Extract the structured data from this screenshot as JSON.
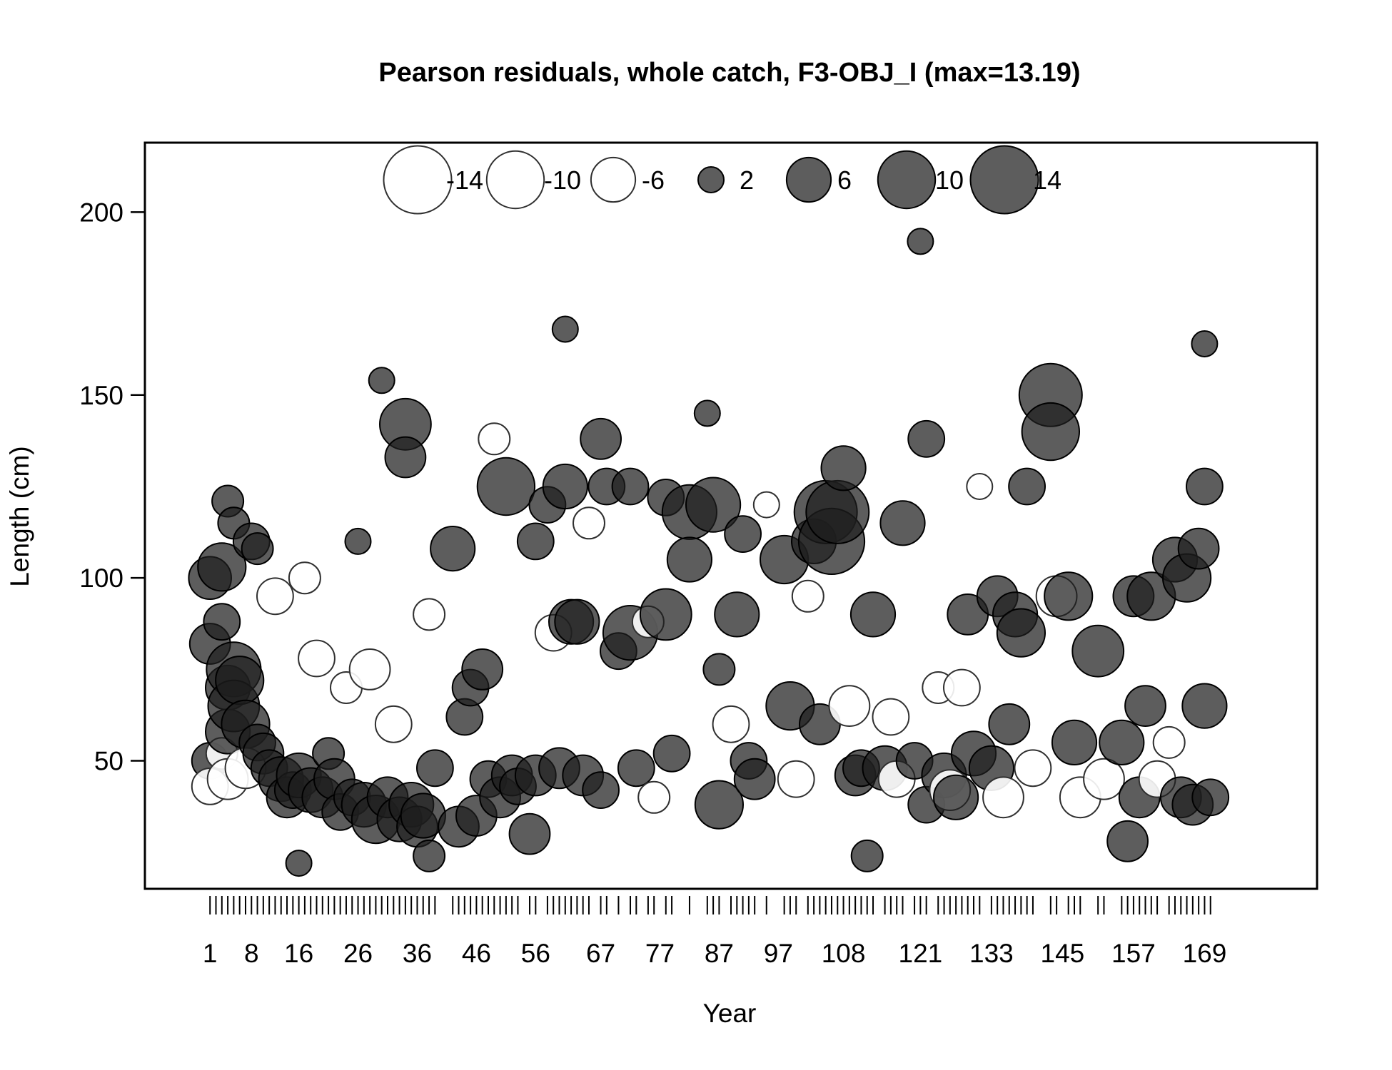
{
  "chart_data": {
    "type": "scatter",
    "subtype": "bubble",
    "title": "Pearson residuals, whole catch, F3-OBJ_I (max=13.19)",
    "xlabel": "Year",
    "ylabel": "Length (cm)",
    "ylim": [
      15,
      219
    ],
    "xlim": [
      -10,
      188
    ],
    "y_ticks": [
      50,
      100,
      150,
      200
    ],
    "x_tick_labels": [
      1,
      8,
      16,
      26,
      36,
      46,
      56,
      67,
      77,
      87,
      97,
      108,
      121,
      133,
      145,
      157,
      169
    ],
    "observed_x": [
      1,
      2,
      3,
      4,
      5,
      6,
      7,
      8,
      9,
      10,
      11,
      12,
      13,
      14,
      15,
      16,
      17,
      18,
      19,
      20,
      21,
      22,
      23,
      24,
      25,
      26,
      27,
      28,
      29,
      30,
      31,
      32,
      33,
      34,
      35,
      36,
      37,
      38,
      39,
      42,
      43,
      44,
      45,
      46,
      47,
      48,
      49,
      50,
      51,
      52,
      53,
      55,
      56,
      58,
      59,
      60,
      61,
      62,
      63,
      64,
      65,
      67,
      68,
      70,
      72,
      73,
      75,
      76,
      78,
      79,
      82,
      85,
      86,
      87,
      89,
      90,
      91,
      92,
      93,
      95,
      98,
      99,
      100,
      102,
      103,
      104,
      105,
      106,
      107,
      108,
      109,
      110,
      111,
      112,
      113,
      115,
      116,
      117,
      118,
      120,
      121,
      122,
      124,
      125,
      126,
      127,
      128,
      129,
      130,
      131,
      133,
      134,
      135,
      136,
      137,
      138,
      139,
      140,
      143,
      144,
      146,
      147,
      148,
      151,
      152,
      155,
      156,
      157,
      158,
      159,
      160,
      161,
      163,
      164,
      165,
      166,
      167,
      168,
      169,
      170
    ],
    "legend": {
      "position": "top",
      "entries": [
        {
          "label": "-14",
          "value": -14
        },
        {
          "label": "-10",
          "value": -10
        },
        {
          "label": "-6",
          "value": -6
        },
        {
          "label": "2",
          "value": 2
        },
        {
          "label": "6",
          "value": 6
        },
        {
          "label": "10",
          "value": 10
        },
        {
          "label": "14",
          "value": 14
        }
      ]
    },
    "encoding": "bubble area proportional to |residual|; filled dark = positive, open white = negative",
    "colors": {
      "positive_fill": "#1f1f1f",
      "positive_stroke": "#000000",
      "negative_fill": "#ffffff",
      "negative_stroke": "#303030"
    },
    "points": [
      {
        "x": 1,
        "y": 100,
        "r": 5.5
      },
      {
        "x": 1,
        "y": 82,
        "r": 5
      },
      {
        "x": 1,
        "y": 50,
        "r": 4
      },
      {
        "x": 1,
        "y": 43,
        "r": -4
      },
      {
        "x": 3,
        "y": 103,
        "r": 7
      },
      {
        "x": 3,
        "y": 88,
        "r": 4
      },
      {
        "x": 3,
        "y": 52,
        "r": -3
      },
      {
        "x": 4,
        "y": 121,
        "r": 3
      },
      {
        "x": 4,
        "y": 70,
        "r": 6
      },
      {
        "x": 4,
        "y": 58,
        "r": 6
      },
      {
        "x": 4,
        "y": 45,
        "r": -5
      },
      {
        "x": 5,
        "y": 115,
        "r": 3
      },
      {
        "x": 5,
        "y": 75,
        "r": 9
      },
      {
        "x": 5,
        "y": 65,
        "r": 8
      },
      {
        "x": 6,
        "y": 72,
        "r": 7
      },
      {
        "x": 7,
        "y": 60,
        "r": 7
      },
      {
        "x": 7,
        "y": 48,
        "r": -5
      },
      {
        "x": 8,
        "y": 110,
        "r": 4
      },
      {
        "x": 9,
        "y": 108,
        "r": 3
      },
      {
        "x": 9,
        "y": 55,
        "r": 4
      },
      {
        "x": 10,
        "y": 52,
        "r": 5
      },
      {
        "x": 11,
        "y": 48,
        "r": 4
      },
      {
        "x": 12,
        "y": 95,
        "r": -4
      },
      {
        "x": 13,
        "y": 45,
        "r": 6
      },
      {
        "x": 14,
        "y": 40,
        "r": 5
      },
      {
        "x": 15,
        "y": 42,
        "r": 4
      },
      {
        "x": 16,
        "y": 22,
        "r": 2
      },
      {
        "x": 16,
        "y": 46,
        "r": 6
      },
      {
        "x": 17,
        "y": 100,
        "r": -3
      },
      {
        "x": 18,
        "y": 42,
        "r": 6
      },
      {
        "x": 19,
        "y": 78,
        "r": -4
      },
      {
        "x": 20,
        "y": 40,
        "r": 5
      },
      {
        "x": 21,
        "y": 52,
        "r": 3
      },
      {
        "x": 22,
        "y": 45,
        "r": 5
      },
      {
        "x": 23,
        "y": 36,
        "r": 4
      },
      {
        "x": 24,
        "y": 70,
        "r": -3
      },
      {
        "x": 25,
        "y": 40,
        "r": 4
      },
      {
        "x": 26,
        "y": 110,
        "r": 2
      },
      {
        "x": 27,
        "y": 38,
        "r": 6
      },
      {
        "x": 28,
        "y": 75,
        "r": -5
      },
      {
        "x": 29,
        "y": 34,
        "r": 7
      },
      {
        "x": 30,
        "y": 154,
        "r": 2
      },
      {
        "x": 31,
        "y": 40,
        "r": 5
      },
      {
        "x": 32,
        "y": 60,
        "r": -4
      },
      {
        "x": 33,
        "y": 34,
        "r": 6
      },
      {
        "x": 34,
        "y": 142,
        "r": 8
      },
      {
        "x": 34,
        "y": 133,
        "r": 5
      },
      {
        "x": 35,
        "y": 38,
        "r": 6
      },
      {
        "x": 36,
        "y": 32,
        "r": 5
      },
      {
        "x": 37,
        "y": 35,
        "r": 6
      },
      {
        "x": 38,
        "y": 90,
        "r": -3
      },
      {
        "x": 38,
        "y": 24,
        "r": 3
      },
      {
        "x": 39,
        "y": 48,
        "r": 4
      },
      {
        "x": 42,
        "y": 108,
        "r": 6
      },
      {
        "x": 43,
        "y": 32,
        "r": 5
      },
      {
        "x": 44,
        "y": 62,
        "r": 4
      },
      {
        "x": 45,
        "y": 70,
        "r": 4
      },
      {
        "x": 46,
        "y": 35,
        "r": 5
      },
      {
        "x": 47,
        "y": 75,
        "r": 5
      },
      {
        "x": 48,
        "y": 45,
        "r": 4
      },
      {
        "x": 49,
        "y": 138,
        "r": -3
      },
      {
        "x": 50,
        "y": 40,
        "r": 5
      },
      {
        "x": 51,
        "y": 125,
        "r": 10
      },
      {
        "x": 52,
        "y": 46,
        "r": 5
      },
      {
        "x": 53,
        "y": 43,
        "r": 4
      },
      {
        "x": 55,
        "y": 30,
        "r": 5
      },
      {
        "x": 56,
        "y": 110,
        "r": 4
      },
      {
        "x": 56,
        "y": 46,
        "r": 5
      },
      {
        "x": 58,
        "y": 120,
        "r": 4
      },
      {
        "x": 59,
        "y": 85,
        "r": -4
      },
      {
        "x": 60,
        "y": 48,
        "r": 5
      },
      {
        "x": 61,
        "y": 168,
        "r": 2
      },
      {
        "x": 61,
        "y": 125,
        "r": 6
      },
      {
        "x": 62,
        "y": 88,
        "r": 6
      },
      {
        "x": 63,
        "y": 88,
        "r": 6
      },
      {
        "x": 64,
        "y": 46,
        "r": 5
      },
      {
        "x": 65,
        "y": 115,
        "r": -3
      },
      {
        "x": 67,
        "y": 138,
        "r": 5
      },
      {
        "x": 67,
        "y": 42,
        "r": 4
      },
      {
        "x": 68,
        "y": 125,
        "r": 4
      },
      {
        "x": 70,
        "y": 80,
        "r": 4
      },
      {
        "x": 72,
        "y": 85,
        "r": 9
      },
      {
        "x": 72,
        "y": 125,
        "r": 4
      },
      {
        "x": 73,
        "y": 48,
        "r": 4
      },
      {
        "x": 75,
        "y": 88,
        "r": -3
      },
      {
        "x": 76,
        "y": 40,
        "r": -3
      },
      {
        "x": 78,
        "y": 90,
        "r": 8
      },
      {
        "x": 78,
        "y": 122,
        "r": 4
      },
      {
        "x": 79,
        "y": 52,
        "r": 4
      },
      {
        "x": 82,
        "y": 118,
        "r": 9
      },
      {
        "x": 82,
        "y": 105,
        "r": 6
      },
      {
        "x": 85,
        "y": 145,
        "r": 2
      },
      {
        "x": 86,
        "y": 120,
        "r": 9
      },
      {
        "x": 87,
        "y": 75,
        "r": 3
      },
      {
        "x": 87,
        "y": 38,
        "r": 7
      },
      {
        "x": 89,
        "y": 60,
        "r": -4
      },
      {
        "x": 90,
        "y": 90,
        "r": 6
      },
      {
        "x": 91,
        "y": 112,
        "r": 4
      },
      {
        "x": 92,
        "y": 50,
        "r": 4
      },
      {
        "x": 93,
        "y": 45,
        "r": 5
      },
      {
        "x": 95,
        "y": 120,
        "r": -2
      },
      {
        "x": 98,
        "y": 105,
        "r": 7
      },
      {
        "x": 99,
        "y": 65,
        "r": 7
      },
      {
        "x": 100,
        "y": 45,
        "r": -4
      },
      {
        "x": 102,
        "y": 95,
        "r": -3
      },
      {
        "x": 103,
        "y": 110,
        "r": 6
      },
      {
        "x": 104,
        "y": 60,
        "r": 5
      },
      {
        "x": 105,
        "y": 118,
        "r": 12
      },
      {
        "x": 106,
        "y": 110,
        "r": 13.19
      },
      {
        "x": 107,
        "y": 118,
        "r": 12
      },
      {
        "x": 108,
        "y": 130,
        "r": 6
      },
      {
        "x": 109,
        "y": 65,
        "r": -5
      },
      {
        "x": 110,
        "y": 46,
        "r": 5
      },
      {
        "x": 111,
        "y": 48,
        "r": 4
      },
      {
        "x": 112,
        "y": 24,
        "r": 3
      },
      {
        "x": 113,
        "y": 90,
        "r": 6
      },
      {
        "x": 115,
        "y": 48,
        "r": 6
      },
      {
        "x": 116,
        "y": 62,
        "r": -4
      },
      {
        "x": 117,
        "y": 45,
        "r": -4
      },
      {
        "x": 118,
        "y": 115,
        "r": 6
      },
      {
        "x": 120,
        "y": 50,
        "r": 4
      },
      {
        "x": 121,
        "y": 192,
        "r": 2
      },
      {
        "x": 122,
        "y": 138,
        "r": 4
      },
      {
        "x": 122,
        "y": 38,
        "r": 4
      },
      {
        "x": 124,
        "y": 70,
        "r": -3
      },
      {
        "x": 125,
        "y": 46,
        "r": 6
      },
      {
        "x": 126,
        "y": 42,
        "r": -5
      },
      {
        "x": 127,
        "y": 40,
        "r": 6
      },
      {
        "x": 128,
        "y": 70,
        "r": -4
      },
      {
        "x": 129,
        "y": 90,
        "r": 5
      },
      {
        "x": 130,
        "y": 52,
        "r": 6
      },
      {
        "x": 131,
        "y": 125,
        "r": -2
      },
      {
        "x": 133,
        "y": 48,
        "r": 6
      },
      {
        "x": 134,
        "y": 95,
        "r": 5
      },
      {
        "x": 135,
        "y": 40,
        "r": -5
      },
      {
        "x": 136,
        "y": 60,
        "r": 5
      },
      {
        "x": 137,
        "y": 90,
        "r": 6
      },
      {
        "x": 138,
        "y": 85,
        "r": 7
      },
      {
        "x": 139,
        "y": 125,
        "r": 4
      },
      {
        "x": 140,
        "y": 48,
        "r": -4
      },
      {
        "x": 143,
        "y": 150,
        "r": 12
      },
      {
        "x": 143,
        "y": 140,
        "r": 10
      },
      {
        "x": 144,
        "y": 95,
        "r": -5
      },
      {
        "x": 146,
        "y": 95,
        "r": 7
      },
      {
        "x": 147,
        "y": 55,
        "r": 6
      },
      {
        "x": 148,
        "y": 40,
        "r": -5
      },
      {
        "x": 151,
        "y": 80,
        "r": 8
      },
      {
        "x": 152,
        "y": 45,
        "r": -5
      },
      {
        "x": 155,
        "y": 55,
        "r": 6
      },
      {
        "x": 156,
        "y": 28,
        "r": 5
      },
      {
        "x": 157,
        "y": 95,
        "r": 5
      },
      {
        "x": 158,
        "y": 40,
        "r": 5
      },
      {
        "x": 159,
        "y": 65,
        "r": 5
      },
      {
        "x": 160,
        "y": 95,
        "r": 7
      },
      {
        "x": 161,
        "y": 45,
        "r": -4
      },
      {
        "x": 163,
        "y": 55,
        "r": -3
      },
      {
        "x": 164,
        "y": 105,
        "r": 6
      },
      {
        "x": 165,
        "y": 40,
        "r": 5
      },
      {
        "x": 166,
        "y": 100,
        "r": 7
      },
      {
        "x": 167,
        "y": 38,
        "r": 5
      },
      {
        "x": 168,
        "y": 108,
        "r": 5
      },
      {
        "x": 169,
        "y": 164,
        "r": 2
      },
      {
        "x": 169,
        "y": 125,
        "r": 4
      },
      {
        "x": 169,
        "y": 65,
        "r": 6
      },
      {
        "x": 170,
        "y": 40,
        "r": 4
      }
    ]
  }
}
